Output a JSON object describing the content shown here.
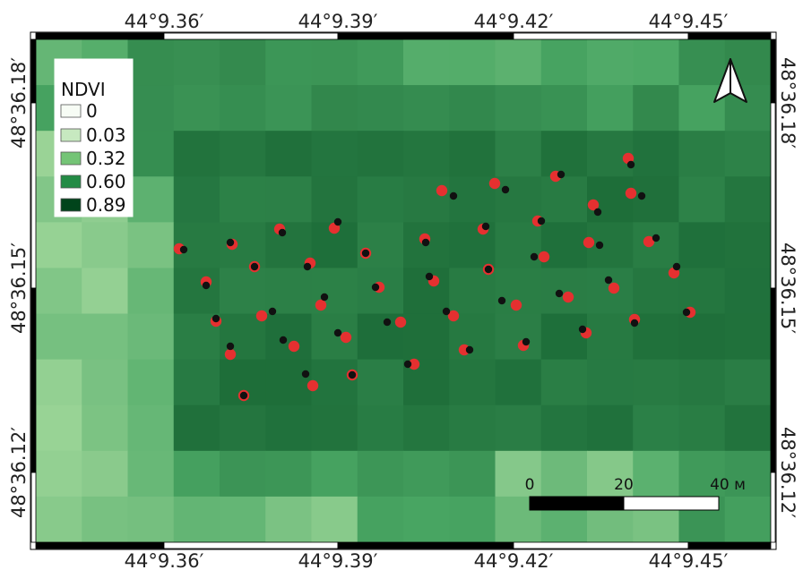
{
  "map": {
    "colors": {
      "ndvi_ramp": [
        "#f7fcf5",
        "#c7e9c0",
        "#74c476",
        "#238b45",
        "#00441b"
      ],
      "measured_point": "#e53030",
      "predicted_point": "#111111"
    }
  },
  "coords": {
    "top": [
      "44°9.36′",
      "44°9.39′",
      "44°9.42′",
      "44°9.45′"
    ],
    "bottom": [
      "44°9.36′",
      "44°9.39′",
      "44°9.42′",
      "44°9.45′"
    ],
    "left": [
      "48°36.18′",
      "48°36.15′",
      "48°36.12′"
    ],
    "right": [
      "48°36.18′",
      "48°36.15′",
      "48°36.12′"
    ]
  },
  "legend": {
    "title": "NDVI",
    "entries": [
      {
        "label": "0",
        "color": "#f7fcf5"
      },
      {
        "label": "0.03",
        "color": "#c7e9c0"
      },
      {
        "label": "0.32",
        "color": "#74c476"
      },
      {
        "label": "0.60",
        "color": "#238b45"
      },
      {
        "label": "0.89",
        "color": "#00441b"
      }
    ]
  },
  "scalebar": {
    "labels": [
      "0",
      "20",
      "40 м"
    ]
  },
  "north_arrow": {
    "icon": "north-arrow-icon"
  }
}
